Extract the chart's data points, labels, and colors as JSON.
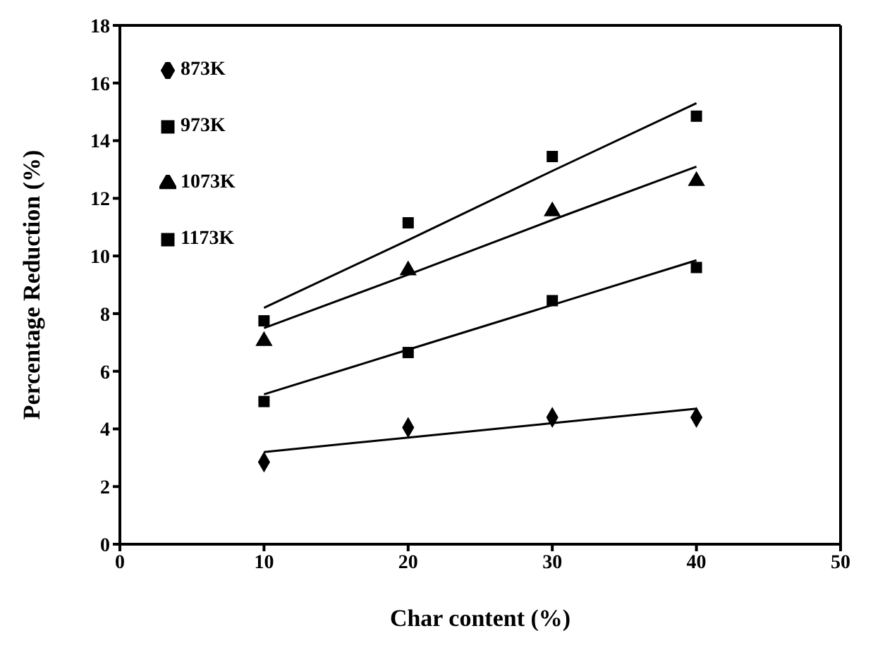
{
  "chart_data": {
    "type": "scatter",
    "xlabel": "Char content (%)",
    "ylabel": "Percentage Reduction (%)",
    "x": [
      10,
      20,
      30,
      40
    ],
    "series": [
      {
        "name": "873K",
        "color": "#000000",
        "marker": "diamond",
        "values": [
          2.85,
          4.05,
          4.4,
          4.4
        ]
      },
      {
        "name": "973K",
        "color": "#000000",
        "marker": "square",
        "values": [
          4.95,
          6.65,
          8.45,
          9.6
        ]
      },
      {
        "name": "1073K",
        "color": "#000000",
        "marker": "triangle",
        "values": [
          7.05,
          9.5,
          11.55,
          12.6
        ]
      },
      {
        "name": "1173K",
        "color": "#000000",
        "marker": "square",
        "values": [
          7.75,
          11.15,
          13.45,
          14.85
        ]
      },
      {
        "type": "line",
        "color": "#000000",
        "values": [
          3.2,
          3.7,
          4.2,
          4.7
        ]
      },
      {
        "type": "line",
        "color": "#000000",
        "values": [
          5.2,
          6.75,
          8.3,
          9.85
        ]
      },
      {
        "type": "line",
        "color": "#000000",
        "values": [
          7.5,
          9.35,
          11.25,
          13.1
        ]
      },
      {
        "type": "line",
        "color": "#000000",
        "values": [
          8.2,
          10.55,
          12.95,
          15.3
        ]
      }
    ],
    "xlim": [
      0,
      50
    ],
    "xticks": [
      0,
      10,
      20,
      30,
      40,
      50
    ],
    "ylim": [
      0,
      18
    ],
    "yticks": [
      0,
      2,
      4,
      6,
      8,
      10,
      12,
      14,
      16,
      18
    ],
    "legend": "top left"
  }
}
